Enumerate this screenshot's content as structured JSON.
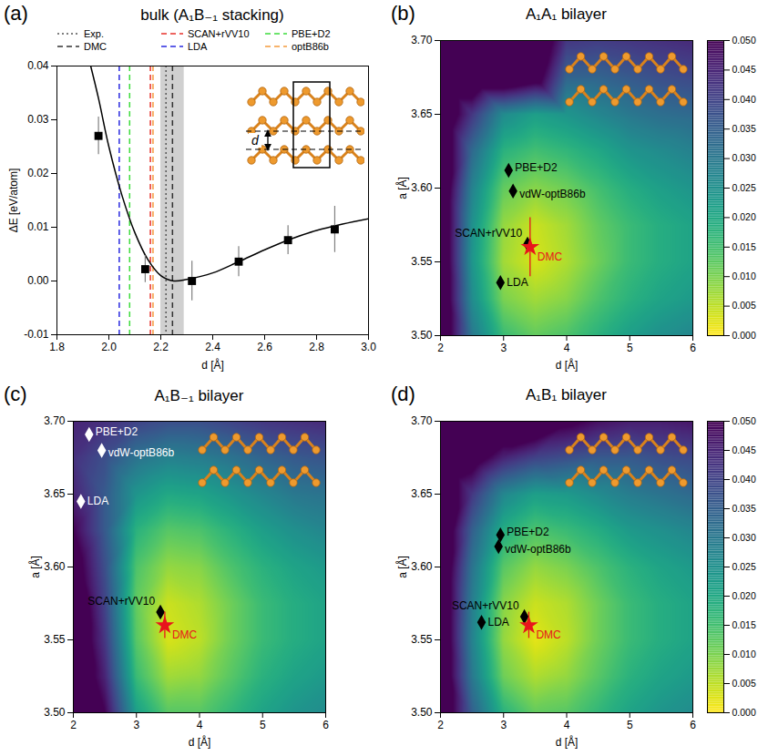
{
  "chart_data": [
    {
      "panel": "(a)",
      "type": "line",
      "title": "bulk (A₁B₋₁ stacking)",
      "x_label": "d [Å]",
      "y_label": "ΔE [eV/atom]",
      "xlim": [
        1.8,
        3.0
      ],
      "xticks": [
        1.8,
        {
          "value": 2,
          "label": "2.0"
        },
        2.2,
        2.4,
        2.6,
        2.8,
        {
          "value": 3,
          "label": "3.0"
        }
      ],
      "ylim": [
        -0.01,
        0.04
      ],
      "yticks": [
        -0.01,
        {
          "value": 0,
          "label": "0.00"
        },
        0.01,
        0.02,
        0.03,
        0.04
      ],
      "legend": "top",
      "fit": {
        "color": "#000000",
        "line_style": "solid",
        "x": [
          1.93,
          1.96,
          2.0,
          2.05,
          2.1,
          2.15,
          2.2,
          2.25,
          2.3,
          2.4,
          2.5,
          2.6,
          2.7,
          2.8,
          2.9,
          3.0
        ],
        "values": [
          0.04,
          0.034,
          0.025,
          0.016,
          0.009,
          0.004,
          0.001,
          0.0,
          0.0003,
          0.0015,
          0.0036,
          0.0058,
          0.0078,
          0.0094,
          0.0106,
          0.0116
        ]
      },
      "points": {
        "marker": "square",
        "color": "#000000",
        "error_color": "#808080",
        "x": [
          1.96,
          2.14,
          2.32,
          2.5,
          2.69,
          2.87
        ],
        "values": [
          0.027,
          0.0022,
          0.0,
          0.0036,
          0.0076,
          0.0096
        ],
        "errors": [
          0.0035,
          0.0025,
          0.0037,
          0.0028,
          0.0027,
          0.0043
        ]
      },
      "series": [
        {
          "name": "Exp.",
          "x": 2.22,
          "color": "#555555",
          "line_style": "dotted"
        },
        {
          "name": "SCAN+rVV10",
          "x": 2.16,
          "color": "#e8322b",
          "line_style": "dashed"
        },
        {
          "name": "PBE+D2",
          "x": 2.08,
          "color": "#3ddc3d",
          "line_style": "dashed"
        },
        {
          "name": "DMC",
          "x": 2.245,
          "color": "#333333",
          "line_style": "dashed",
          "uncertainty": [
            2.2,
            2.29
          ]
        },
        {
          "name": "LDA",
          "x": 2.04,
          "color": "#2a2ae0",
          "line_style": "dashed"
        },
        {
          "name": "optB86b",
          "x": 2.17,
          "color": "#f59a3c",
          "line_style": "dashed"
        }
      ],
      "inset_label": "d"
    },
    {
      "panel": "(b)",
      "type": "heatmap",
      "title": "A₁A₁ bilayer",
      "x_label": "d [Å]",
      "y_label": "a [Å]",
      "xlim": [
        2,
        6
      ],
      "xticks": [
        2,
        3,
        4,
        5,
        6
      ],
      "ylim": [
        3.5,
        3.7
      ],
      "yticks": [
        {
          "value": 3.5,
          "label": "3.50"
        },
        3.55,
        {
          "value": 3.6,
          "label": "3.60"
        },
        3.65,
        {
          "value": 3.7,
          "label": "3.70"
        }
      ],
      "color_range": [
        0,
        0.05
      ],
      "colorbar_ticks": [
        {
          "value": 0,
          "label": "0.000"
        },
        0.005,
        {
          "value": 0.01,
          "label": "0.010"
        },
        0.015,
        {
          "value": 0.02,
          "label": "0.020"
        },
        0.025,
        {
          "value": 0.03,
          "label": "0.030"
        },
        0.035,
        {
          "value": 0.04,
          "label": "0.040"
        },
        0.045,
        {
          "value": 0.05,
          "label": "0.050"
        }
      ],
      "grid_d": [
        2,
        2.5,
        3,
        3.5,
        4,
        4.5,
        5,
        5.5,
        6
      ],
      "grid_a": [
        3.5,
        3.525,
        3.55,
        3.575,
        3.6,
        3.625,
        3.65,
        3.675,
        3.7
      ],
      "cells": [
        [
          0.06,
          0.03,
          0.016,
          0.012,
          0.014,
          0.018,
          0.022,
          0.025,
          0.027
        ],
        [
          0.06,
          0.026,
          0.01,
          0.007,
          0.009,
          0.014,
          0.018,
          0.021,
          0.023
        ],
        [
          0.06,
          0.024,
          0.007,
          0.003,
          0.006,
          0.011,
          0.016,
          0.019,
          0.021
        ],
        [
          0.06,
          0.025,
          0.008,
          0.004,
          0.007,
          0.012,
          0.016,
          0.019,
          0.021
        ],
        [
          0.06,
          0.028,
          0.012,
          0.009,
          0.011,
          0.015,
          0.019,
          0.022,
          0.024
        ],
        [
          0.06,
          0.033,
          0.018,
          0.015,
          0.017,
          0.02,
          0.024,
          0.026,
          0.028
        ],
        [
          0.06,
          0.042,
          0.026,
          0.022,
          0.024,
          0.027,
          0.03,
          0.032,
          0.033
        ],
        [
          0.06,
          0.06,
          0.06,
          0.055,
          0.034,
          0.034,
          0.036,
          0.038,
          0.039
        ],
        [
          0.06,
          0.06,
          0.06,
          0.06,
          0.042,
          0.041,
          0.042,
          0.043,
          0.044
        ]
      ],
      "markers": [
        {
          "label": "PBE+D2",
          "d": 3.08,
          "a": 3.612,
          "marker": "diamond",
          "color": "#000000"
        },
        {
          "label": "vdW-optB86b",
          "d": 3.15,
          "a": 3.598,
          "marker": "diamond",
          "color": "#000000"
        },
        {
          "label": "SCAN+rVV10",
          "d": 3.38,
          "a": 3.562,
          "marker": "diamond",
          "color": "#000000"
        },
        {
          "label": "LDA",
          "d": 2.95,
          "a": 3.536,
          "marker": "diamond",
          "color": "#000000"
        },
        {
          "label": "DMC",
          "d": 3.42,
          "a": 3.56,
          "a_err": 0.02,
          "marker": "star",
          "color": "#e8141c"
        }
      ]
    },
    {
      "panel": "(c)",
      "type": "heatmap",
      "title": "A₁B₋₁ bilayer",
      "x_label": "d [Å]",
      "y_label": "a [Å]",
      "xlim": [
        2,
        6
      ],
      "xticks": [
        2,
        3,
        4,
        5,
        6
      ],
      "ylim": [
        3.5,
        3.7
      ],
      "yticks": [
        {
          "value": 3.5,
          "label": "3.50"
        },
        3.55,
        {
          "value": 3.6,
          "label": "3.60"
        },
        3.65,
        {
          "value": 3.7,
          "label": "3.70"
        }
      ],
      "color_range": [
        0,
        0.05
      ],
      "grid_d": [
        2,
        2.5,
        3,
        3.5,
        4,
        4.5,
        5,
        5.5,
        6
      ],
      "grid_a": [
        3.5,
        3.525,
        3.55,
        3.575,
        3.6,
        3.625,
        3.65,
        3.675,
        3.7
      ],
      "cells": [
        [
          0.06,
          0.05,
          0.022,
          0.013,
          0.013,
          0.017,
          0.021,
          0.024,
          0.026
        ],
        [
          0.06,
          0.045,
          0.016,
          0.007,
          0.008,
          0.013,
          0.018,
          0.021,
          0.023
        ],
        [
          0.06,
          0.042,
          0.013,
          0.003,
          0.005,
          0.011,
          0.016,
          0.019,
          0.021
        ],
        [
          0.06,
          0.04,
          0.012,
          0.004,
          0.006,
          0.011,
          0.016,
          0.019,
          0.021
        ],
        [
          0.055,
          0.038,
          0.014,
          0.008,
          0.009,
          0.014,
          0.018,
          0.021,
          0.023
        ],
        [
          0.05,
          0.036,
          0.018,
          0.013,
          0.014,
          0.018,
          0.022,
          0.025,
          0.027
        ],
        [
          0.045,
          0.036,
          0.024,
          0.02,
          0.021,
          0.024,
          0.027,
          0.03,
          0.031
        ],
        [
          0.043,
          0.038,
          0.031,
          0.028,
          0.029,
          0.031,
          0.034,
          0.036,
          0.037
        ],
        [
          0.045,
          0.043,
          0.04,
          0.038,
          0.038,
          0.04,
          0.042,
          0.043,
          0.044
        ]
      ],
      "markers": [
        {
          "label": "PBE+D2",
          "d": 2.25,
          "a": 3.691,
          "marker": "diamond",
          "color": "#ffffff"
        },
        {
          "label": "vdW-optB86b",
          "d": 2.45,
          "a": 3.68,
          "marker": "diamond",
          "color": "#ffffff"
        },
        {
          "label": "SCAN+rVV10",
          "d": 3.38,
          "a": 3.569,
          "marker": "diamond",
          "color": "#000000"
        },
        {
          "label": "LDA",
          "d": 2.12,
          "a": 3.645,
          "marker": "diamond",
          "color": "#ffffff"
        },
        {
          "label": "DMC",
          "d": 3.45,
          "a": 3.56,
          "a_err": 0.009,
          "marker": "star",
          "color": "#e8141c"
        }
      ]
    },
    {
      "panel": "(d)",
      "type": "heatmap",
      "title": "A₁B₁ bilayer",
      "x_label": "d [Å]",
      "y_label": "a [Å]",
      "xlim": [
        2,
        6
      ],
      "xticks": [
        2,
        3,
        4,
        5,
        6
      ],
      "ylim": [
        3.5,
        3.7
      ],
      "yticks": [
        {
          "value": 3.5,
          "label": "3.50"
        },
        3.55,
        {
          "value": 3.6,
          "label": "3.60"
        },
        3.65,
        {
          "value": 3.7,
          "label": "3.70"
        }
      ],
      "color_range": [
        0,
        0.05
      ],
      "colorbar_ticks": [
        {
          "value": 0,
          "label": "0.000"
        },
        0.005,
        {
          "value": 0.01,
          "label": "0.010"
        },
        0.015,
        {
          "value": 0.02,
          "label": "0.020"
        },
        0.025,
        {
          "value": 0.03,
          "label": "0.030"
        },
        0.035,
        {
          "value": 0.04,
          "label": "0.040"
        },
        0.045,
        {
          "value": 0.05,
          "label": "0.050"
        }
      ],
      "grid_d": [
        2,
        2.5,
        3,
        3.5,
        4,
        4.5,
        5,
        5.5,
        6
      ],
      "grid_a": [
        3.5,
        3.525,
        3.55,
        3.575,
        3.6,
        3.625,
        3.65,
        3.675,
        3.7
      ],
      "cells": [
        [
          0.06,
          0.035,
          0.018,
          0.012,
          0.013,
          0.017,
          0.021,
          0.024,
          0.026
        ],
        [
          0.06,
          0.03,
          0.011,
          0.006,
          0.008,
          0.013,
          0.018,
          0.021,
          0.023
        ],
        [
          0.06,
          0.028,
          0.008,
          0.002,
          0.005,
          0.011,
          0.016,
          0.019,
          0.021
        ],
        [
          0.06,
          0.029,
          0.009,
          0.004,
          0.006,
          0.011,
          0.016,
          0.019,
          0.021
        ],
        [
          0.06,
          0.031,
          0.013,
          0.008,
          0.01,
          0.014,
          0.018,
          0.021,
          0.023
        ],
        [
          0.06,
          0.035,
          0.019,
          0.014,
          0.016,
          0.019,
          0.023,
          0.025,
          0.027
        ],
        [
          0.06,
          0.042,
          0.027,
          0.022,
          0.023,
          0.026,
          0.029,
          0.031,
          0.033
        ],
        [
          0.06,
          0.055,
          0.045,
          0.04,
          0.038,
          0.036,
          0.036,
          0.038,
          0.039
        ],
        [
          0.06,
          0.06,
          0.06,
          0.06,
          0.052,
          0.048,
          0.046,
          0.046,
          0.047
        ]
      ],
      "markers": [
        {
          "label": "PBE+D2",
          "d": 2.95,
          "a": 3.622,
          "marker": "diamond",
          "color": "#000000"
        },
        {
          "label": "vdW-optB86b",
          "d": 2.92,
          "a": 3.614,
          "marker": "diamond",
          "color": "#000000"
        },
        {
          "label": "SCAN+rVV10",
          "d": 3.33,
          "a": 3.566,
          "marker": "diamond",
          "color": "#000000"
        },
        {
          "label": "LDA",
          "d": 2.65,
          "a": 3.562,
          "marker": "diamond",
          "color": "#000000"
        },
        {
          "label": "DMC",
          "d": 3.4,
          "a": 3.56,
          "a_err": 0.009,
          "marker": "star",
          "color": "#e8141c"
        }
      ]
    }
  ]
}
